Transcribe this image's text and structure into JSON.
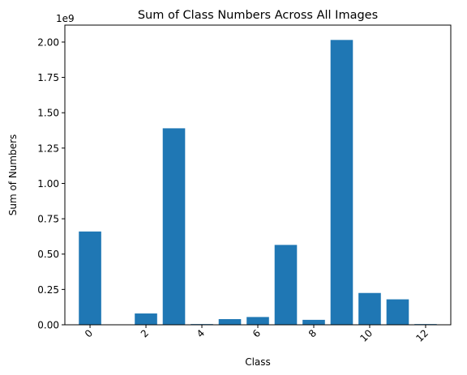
{
  "chart_data": {
    "type": "bar",
    "title": "Sum of Class Numbers Across All Images",
    "xlabel": "Class",
    "ylabel": "Sum of Numbers",
    "offset_text": "1e9",
    "categories": [
      0,
      1,
      2,
      3,
      4,
      5,
      6,
      7,
      8,
      9,
      10,
      11,
      12
    ],
    "values": [
      0.66,
      0.0,
      0.08,
      1.39,
      0.005,
      0.04,
      0.055,
      0.565,
      0.035,
      2.015,
      0.225,
      0.18,
      0.005
    ],
    "value_multiplier": 1000000000,
    "xticks": [
      0,
      2,
      4,
      6,
      8,
      10,
      12
    ],
    "xtick_labels": [
      "0",
      "2",
      "4",
      "6",
      "8",
      "10",
      "12"
    ],
    "xlim": [
      -0.9,
      12.9
    ],
    "yticks": [
      0.0,
      0.25,
      0.5,
      0.75,
      1.0,
      1.25,
      1.5,
      1.75,
      2.0
    ],
    "ytick_labels": [
      "0.00",
      "0.25",
      "0.50",
      "0.75",
      "1.00",
      "1.25",
      "1.50",
      "1.75",
      "2.00"
    ],
    "ylim": [
      0,
      2.12
    ],
    "bar_color": "#1f77b4",
    "grid": false,
    "legend": "none"
  }
}
